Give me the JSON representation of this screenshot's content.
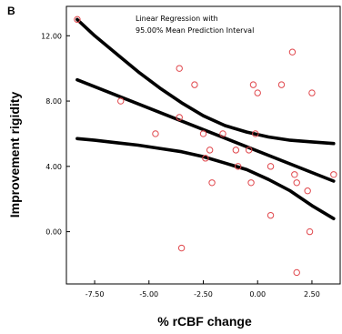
{
  "panel_label": "B",
  "chart_data": {
    "type": "scatter",
    "title": "",
    "xlabel": "% rCBF change",
    "ylabel": "Improvement rigidity",
    "xlim": [
      -8.8,
      3.8
    ],
    "ylim": [
      -3.2,
      13.8
    ],
    "x_ticks": [
      -7.5,
      -5.0,
      -2.5,
      0.0,
      2.5
    ],
    "x_tick_labels": [
      "-7.50",
      "-5.00",
      "-2.50",
      "0.00",
      "2.50"
    ],
    "y_ticks": [
      0.0,
      4.0,
      8.0,
      12.0
    ],
    "y_tick_labels": [
      "0.00",
      "4.00",
      "8.00",
      "12.00"
    ],
    "grid": false,
    "annotation_lines": [
      "Linear Regression with",
      "95.00% Mean Prediction Interval"
    ],
    "points": {
      "x": [
        -8.3,
        -6.3,
        -4.7,
        -3.6,
        -3.6,
        -3.5,
        -2.9,
        -2.5,
        -2.4,
        -2.2,
        -2.1,
        -1.6,
        -1.0,
        -0.9,
        -0.4,
        -0.3,
        -0.2,
        -0.1,
        0.0,
        0.6,
        0.6,
        1.1,
        1.6,
        1.7,
        1.8,
        1.8,
        2.3,
        2.4,
        2.5,
        3.5
      ],
      "y": [
        13.0,
        8.0,
        6.0,
        10.0,
        7.0,
        -1.0,
        9.0,
        6.0,
        4.5,
        5.0,
        3.0,
        6.0,
        5.0,
        4.0,
        5.0,
        3.0,
        9.0,
        6.0,
        8.5,
        4.0,
        1.0,
        9.0,
        11.0,
        3.5,
        3.0,
        -2.5,
        2.5,
        0.0,
        8.5,
        3.5
      ]
    },
    "fit_line": {
      "x": [
        -8.3,
        3.5
      ],
      "y": [
        9.3,
        3.1
      ]
    },
    "upper_band": {
      "x": [
        -8.3,
        -7.5,
        -6.5,
        -5.5,
        -4.5,
        -3.5,
        -2.5,
        -1.5,
        -0.5,
        0.5,
        1.5,
        2.5,
        3.5
      ],
      "y": [
        13.0,
        12.0,
        10.9,
        9.8,
        8.8,
        7.9,
        7.1,
        6.5,
        6.1,
        5.8,
        5.6,
        5.5,
        5.4
      ]
    },
    "lower_band": {
      "x": [
        -8.3,
        -7.5,
        -6.5,
        -5.5,
        -4.5,
        -3.5,
        -2.5,
        -1.5,
        -0.5,
        0.5,
        1.5,
        2.5,
        3.5
      ],
      "y": [
        5.7,
        5.6,
        5.45,
        5.3,
        5.1,
        4.9,
        4.6,
        4.2,
        3.8,
        3.2,
        2.5,
        1.6,
        0.8
      ]
    },
    "colors": {
      "points": "#e0474c",
      "lines": "#000000"
    }
  }
}
